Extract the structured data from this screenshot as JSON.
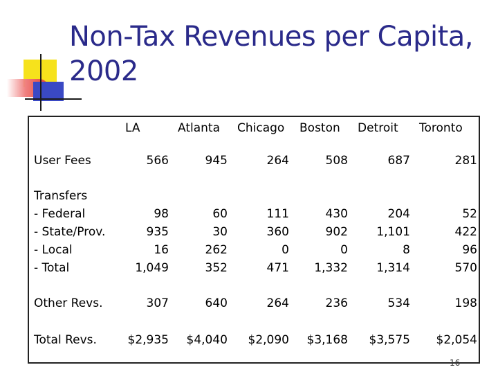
{
  "title": "Non-Tax Revenues per Capita, 2002",
  "page_number": "16",
  "columns": [
    "LA",
    "Atlanta",
    "Chicago",
    "Boston",
    "Detroit",
    "Toronto"
  ],
  "rows": [
    {
      "label": [
        "User Fees"
      ],
      "values": [
        [
          "566"
        ],
        [
          "945"
        ],
        [
          "264"
        ],
        [
          "508"
        ],
        [
          "687"
        ],
        [
          "281"
        ]
      ]
    },
    {
      "label": [
        "Transfers",
        "- Federal",
        "- State/Prov.",
        "- Local",
        "- Total"
      ],
      "values": [
        [
          "",
          "98",
          "935",
          "16",
          "1,049"
        ],
        [
          "",
          "60",
          "30",
          "262",
          "352"
        ],
        [
          "",
          "111",
          "360",
          "0",
          "471"
        ],
        [
          "",
          "430",
          "902",
          "0",
          "1,332"
        ],
        [
          "",
          "204",
          "1,101",
          "8",
          "1,314"
        ],
        [
          "",
          "52",
          "422",
          "96",
          "570"
        ]
      ]
    },
    {
      "label": [
        "Other Revs."
      ],
      "values": [
        [
          "307"
        ],
        [
          "640"
        ],
        [
          "264"
        ],
        [
          "236"
        ],
        [
          "534"
        ],
        [
          "198"
        ]
      ]
    },
    {
      "label": [
        "Total Revs."
      ],
      "values": [
        [
          "$2,935"
        ],
        [
          "$4,040"
        ],
        [
          "$2,090"
        ],
        [
          "$3,168"
        ],
        [
          "$3,575"
        ],
        [
          "$2,054"
        ]
      ]
    }
  ],
  "colors": {
    "title": "#2a2a8a",
    "deco_yellow": "#f6e21c",
    "deco_blue": "#3a49c4",
    "deco_red": "#e2402e"
  }
}
